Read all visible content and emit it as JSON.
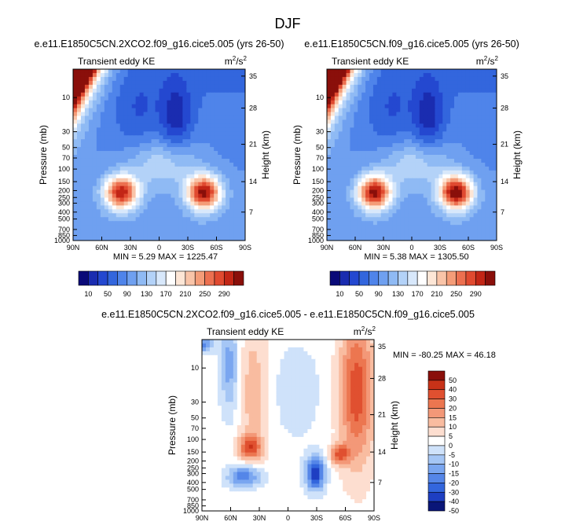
{
  "page_title": "DJF",
  "colors": {
    "bg": "#ffffff",
    "top_palette": [
      "#0a0a78",
      "#1a2cb0",
      "#2448d0",
      "#3366dd",
      "#4f84ea",
      "#6fa0f0",
      "#8fbaf4",
      "#b3d2f8",
      "#d8e8fb",
      "#ffffff",
      "#fde6d6",
      "#f9c4a8",
      "#f49c78",
      "#ec7050",
      "#e04a30",
      "#c22616",
      "#8a0f0a"
    ],
    "diff_palette": [
      "#0a1678",
      "#1e3fc2",
      "#3366dd",
      "#5586e8",
      "#7aa6f0",
      "#a5c6f5",
      "#cfe2fa",
      "#ffffff",
      "#fdded0",
      "#f9bca0",
      "#f39878",
      "#ec7650",
      "#e05030",
      "#c83218",
      "#8a0f0a"
    ]
  },
  "charts": [
    {
      "id": "ctl_co2",
      "title": "e.e11.E1850C5CN.2XCO2.f09_g16.cice5.005 (yrs 26-50)",
      "left_label": "Transient eddy KE",
      "units_main": "m",
      "units_sup": "2",
      "units_tail": "/s",
      "units_sup2": "2",
      "ylabel": "Pressure (mb)",
      "ylabel_right": "Height (km)",
      "stats": "MIN =   5.29  MAX = 1225.47"
    },
    {
      "id": "ctl_base",
      "title": "e.e11.E1850C5CN.f09_g16.cice5.005 (yrs 26-50)",
      "left_label": "Transient eddy KE",
      "units_main": "m",
      "units_sup": "2",
      "units_tail": "/s",
      "units_sup2": "2",
      "ylabel": "Pressure (mb)",
      "ylabel_right": "Height (km)",
      "stats": "MIN =   5.38  MAX = 1305.50"
    },
    {
      "id": "diff",
      "title": "e.e11.E1850C5CN.2XCO2.f09_g16.cice5.005 - e.e11.E1850C5CN.f09_g16.cice5.005",
      "left_label": "Transient eddy KE",
      "units_main": "m",
      "units_sup": "2",
      "units_tail": "/s",
      "units_sup2": "2",
      "ylabel": "Pressure (mb)",
      "ylabel_right": "Height (km)",
      "stats": "MIN = -80.25  MAX =  46.18"
    }
  ],
  "chart_data": [
    {
      "type": "heatmap",
      "name": "Transient eddy KE, 2xCO2",
      "x_axis": {
        "ticks": [
          "90N",
          "60N",
          "30N",
          "0",
          "30S",
          "60S",
          "90S"
        ],
        "values": [
          90,
          60,
          30,
          0,
          -30,
          -60,
          -90
        ]
      },
      "y_axis": {
        "ticks": [
          "10",
          "30",
          "50",
          "70",
          "100",
          "150",
          "200",
          "250",
          "300",
          "400",
          "500",
          "700",
          "850",
          "1000"
        ],
        "values": [
          10,
          30,
          50,
          70,
          100,
          150,
          200,
          250,
          300,
          400,
          500,
          700,
          850,
          1000
        ],
        "scale": "log",
        "range": [
          4,
          1000
        ]
      },
      "y_axis_right": {
        "ticks": [
          "35",
          "28",
          "21",
          "14",
          "7"
        ],
        "values_mb": [
          5,
          14,
          45,
          150,
          400
        ]
      },
      "contour_levels": [
        10,
        30,
        50,
        70,
        90,
        110,
        130,
        150,
        170,
        190,
        210,
        230,
        250,
        270,
        290,
        310
      ],
      "colorbar_labels": [
        "10",
        "50",
        "90",
        "130",
        "170",
        "210",
        "250",
        "290"
      ],
      "min": 5.29,
      "max": 1225.47
    },
    {
      "type": "heatmap",
      "name": "Transient eddy KE, control",
      "x_axis": {
        "ticks": [
          "90N",
          "60N",
          "30N",
          "0",
          "30S",
          "60S",
          "90S"
        ],
        "values": [
          90,
          60,
          30,
          0,
          -30,
          -60,
          -90
        ]
      },
      "y_axis": {
        "ticks": [
          "10",
          "30",
          "50",
          "70",
          "100",
          "150",
          "200",
          "250",
          "300",
          "400",
          "500",
          "700",
          "850",
          "1000"
        ],
        "values": [
          10,
          30,
          50,
          70,
          100,
          150,
          200,
          250,
          300,
          400,
          500,
          700,
          850,
          1000
        ],
        "scale": "log",
        "range": [
          4,
          1000
        ]
      },
      "y_axis_right": {
        "ticks": [
          "35",
          "28",
          "21",
          "14",
          "7"
        ],
        "values_mb": [
          5,
          14,
          45,
          150,
          400
        ]
      },
      "contour_levels": [
        10,
        30,
        50,
        70,
        90,
        110,
        130,
        150,
        170,
        190,
        210,
        230,
        250,
        270,
        290,
        310
      ],
      "colorbar_labels": [
        "10",
        "50",
        "90",
        "130",
        "170",
        "210",
        "250",
        "290"
      ],
      "min": 5.38,
      "max": 1305.5
    },
    {
      "type": "heatmap",
      "name": "Transient eddy KE difference",
      "x_axis": {
        "ticks": [
          "90N",
          "60N",
          "30N",
          "0",
          "30S",
          "60S",
          "90S"
        ],
        "values": [
          90,
          60,
          30,
          0,
          -30,
          -60,
          -90
        ]
      },
      "y_axis": {
        "ticks": [
          "10",
          "30",
          "50",
          "70",
          "100",
          "150",
          "200",
          "250",
          "300",
          "400",
          "500",
          "700",
          "850",
          "1000"
        ],
        "values": [
          10,
          30,
          50,
          70,
          100,
          150,
          200,
          250,
          300,
          400,
          500,
          700,
          850,
          1000
        ],
        "scale": "log",
        "range": [
          4,
          1000
        ]
      },
      "y_axis_right": {
        "ticks": [
          "35",
          "28",
          "21",
          "14",
          "7"
        ],
        "values_mb": [
          5,
          14,
          45,
          150,
          400
        ]
      },
      "contour_levels": [
        -50,
        -40,
        -30,
        -20,
        -15,
        -10,
        -5,
        0,
        5,
        10,
        15,
        20,
        30,
        40,
        50
      ],
      "colorbar_labels": [
        "50",
        "40",
        "30",
        "20",
        "15",
        "10",
        "5",
        "0",
        "-5",
        "-10",
        "-15",
        "-20",
        "-30",
        "-40",
        "-50"
      ],
      "min": -80.25,
      "max": 46.18
    }
  ]
}
